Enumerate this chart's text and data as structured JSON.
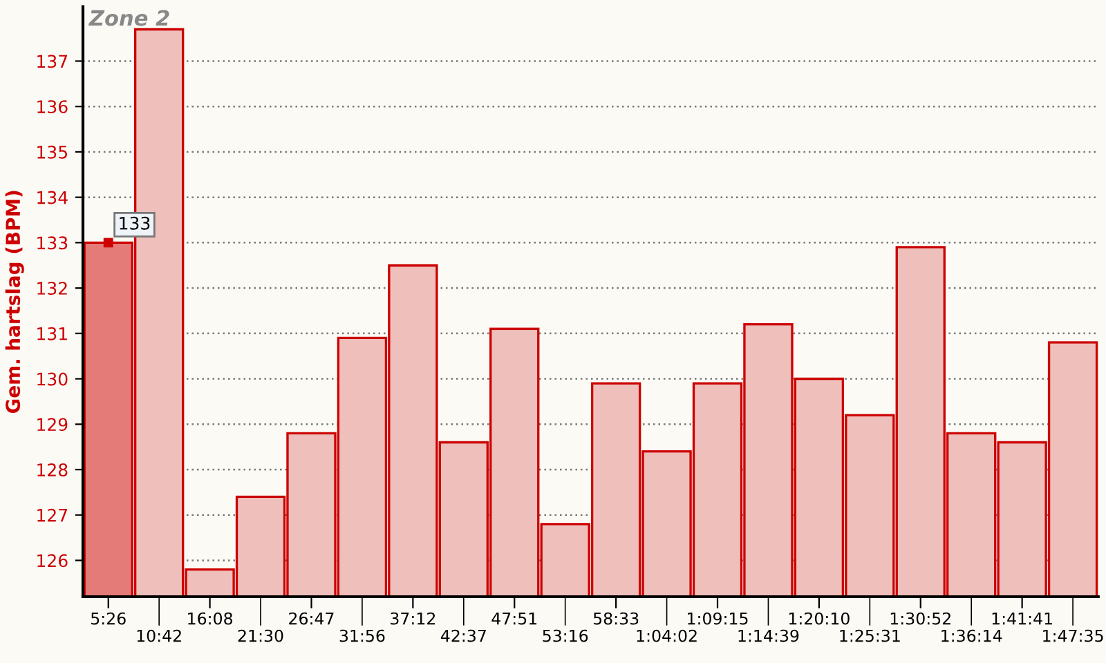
{
  "chart_data": {
    "type": "bar",
    "title": "Zone 2",
    "ylabel": "Gem. hartslag (BPM)",
    "categories": [
      "5:26",
      "10:42",
      "16:08",
      "21:30",
      "26:47",
      "31:56",
      "37:12",
      "42:37",
      "47:51",
      "53:16",
      "58:33",
      "1:04:02",
      "1:09:15",
      "1:14:39",
      "1:20:10",
      "1:25:31",
      "1:30:52",
      "1:36:14",
      "1:41:41",
      "1:47:35"
    ],
    "values": [
      133.0,
      137.7,
      125.8,
      127.4,
      128.8,
      130.9,
      132.5,
      128.6,
      131.1,
      126.8,
      129.9,
      128.4,
      129.9,
      131.2,
      130.0,
      129.2,
      132.9,
      128.8,
      128.6,
      130.8
    ],
    "colors": [
      "#e47b78",
      "#efbfbb",
      "#efbfbb",
      "#efbfbb",
      "#efbfbb",
      "#efbfbb",
      "#efbfbb",
      "#efbfbb",
      "#efbfbb",
      "#efbfbb",
      "#efbfbb",
      "#efbfbb",
      "#efbfbb",
      "#efbfbb",
      "#efbfbb",
      "#efbfbb",
      "#efbfbb",
      "#efbfbb",
      "#efbfbb",
      "#efbfbb"
    ],
    "value_labels": [
      "133",
      null,
      null,
      null,
      null,
      null,
      null,
      null,
      null,
      null,
      null,
      null,
      null,
      null,
      null,
      null,
      null,
      null,
      null,
      null
    ],
    "ylim": [
      125.2,
      138.2
    ],
    "yticks": [
      126,
      127,
      128,
      129,
      130,
      131,
      132,
      133,
      134,
      135,
      136,
      137
    ],
    "grid": "y"
  }
}
